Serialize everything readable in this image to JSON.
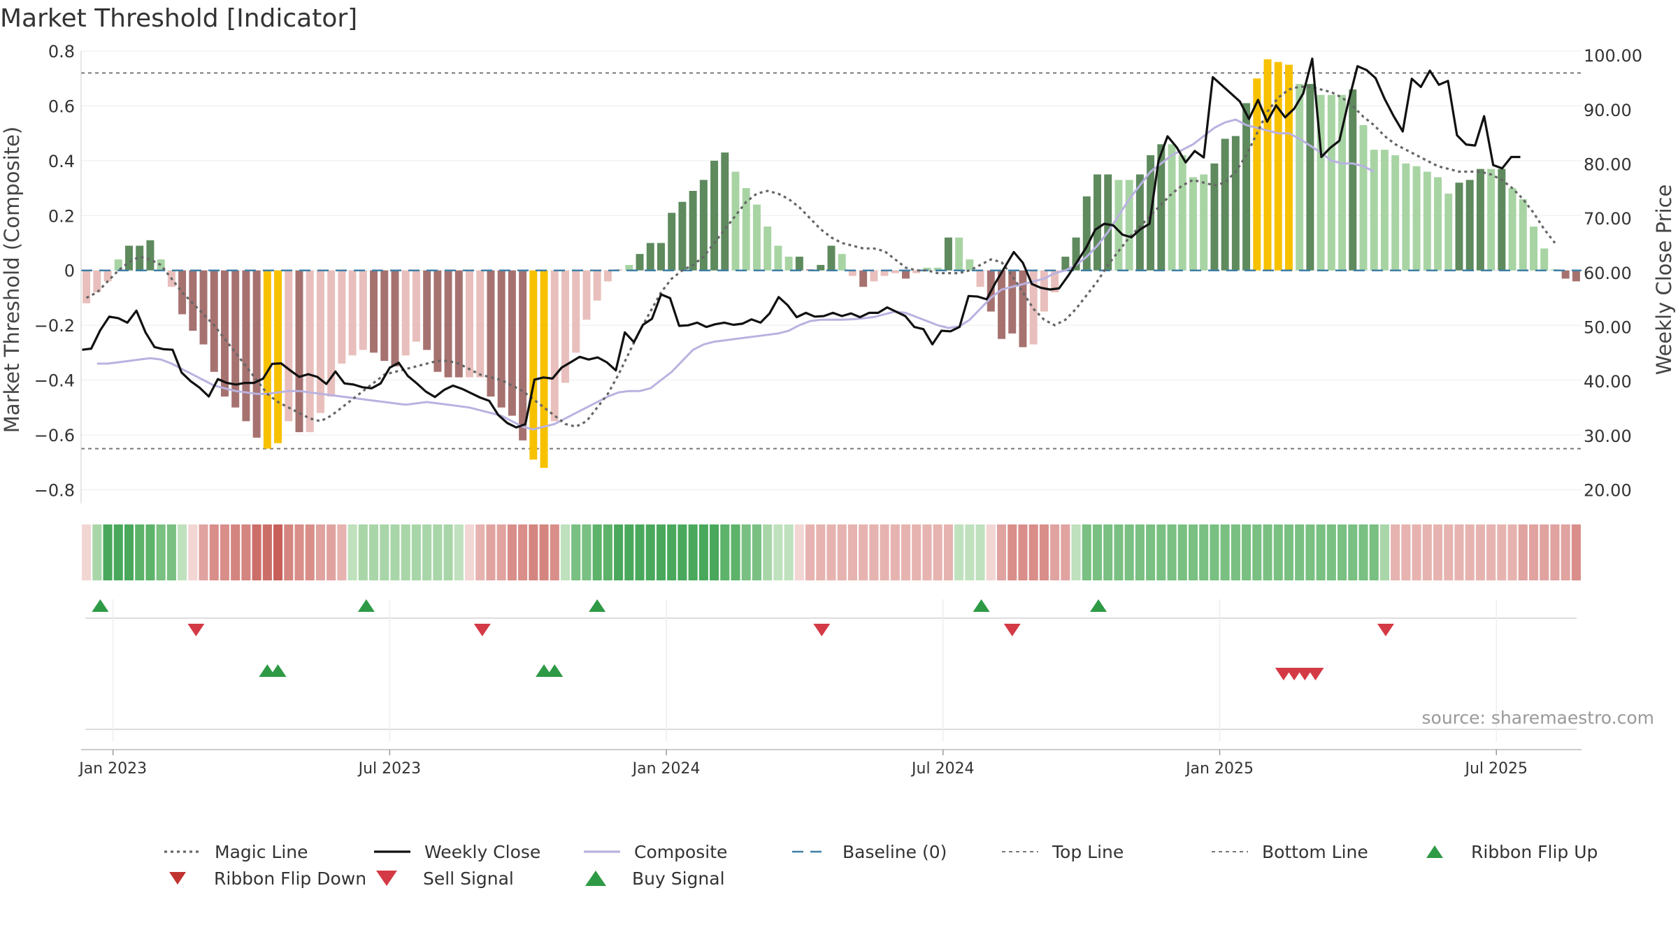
{
  "title": "Market Threshold [Indicator]",
  "source": "source: sharemaestro.com",
  "colors": {
    "dark_green": "#5e8a5e",
    "light_green": "#a8d4a4",
    "dark_red": "#a67270",
    "light_red": "#e8bfbc",
    "yellow": "#f7c100",
    "magic": "#666666",
    "close": "#111111",
    "composite": "#b9b2e0",
    "baseline": "#3f7fa6",
    "threshold": "#777777",
    "buy": "#2e9a46",
    "sell": "#d43a45"
  },
  "chart_data": {
    "type": "bar",
    "title": "Market Threshold [Indicator]",
    "ylabel": "Market Threshold (Composite)",
    "y2label": "Weekly Close Price",
    "ylim": [
      -0.85,
      0.8
    ],
    "y2lim": [
      17.5,
      100.8
    ],
    "yticks": [
      "0.8",
      "0.6",
      "0.4",
      "0.2",
      "0",
      "−0.2",
      "−0.4",
      "−0.6",
      "−0.8"
    ],
    "y2ticks": [
      "100.00",
      "90.00",
      "80.00",
      "70.00",
      "60.00",
      "50.00",
      "40.00",
      "30.00",
      "20.00"
    ],
    "xticks": [
      "Jan 2023",
      "Jul 2023",
      "Jan 2024",
      "Jul 2024",
      "Jan 2025",
      "Jul 2025"
    ],
    "xtick_weeks": [
      2.5,
      28.5,
      54.5,
      80.5,
      106.5,
      132.5
    ],
    "top_line": 0.72,
    "bottom_line": -0.65,
    "baseline": 0,
    "magic_values": [
      -0.1,
      -0.08,
      -0.04,
      0.0,
      0.03,
      0.05,
      0.04,
      0.02,
      -0.03,
      -0.08,
      -0.12,
      -0.16,
      -0.2,
      -0.25,
      -0.3,
      -0.35,
      -0.4,
      -0.45,
      -0.48,
      -0.5,
      -0.52,
      -0.54,
      -0.55,
      -0.53,
      -0.5,
      -0.47,
      -0.44,
      -0.41,
      -0.38,
      -0.37,
      -0.36,
      -0.35,
      -0.34,
      -0.33,
      -0.33,
      -0.34,
      -0.36,
      -0.38,
      -0.39,
      -0.4,
      -0.42,
      -0.44,
      -0.47,
      -0.5,
      -0.53,
      -0.56,
      -0.57,
      -0.55,
      -0.5,
      -0.45,
      -0.38,
      -0.3,
      -0.22,
      -0.15,
      -0.08,
      -0.03,
      -0.0,
      0.02,
      0.05,
      0.1,
      0.15,
      0.2,
      0.25,
      0.28,
      0.29,
      0.28,
      0.26,
      0.23,
      0.19,
      0.15,
      0.12,
      0.1,
      0.09,
      0.08,
      0.08,
      0.07,
      0.04,
      0.01,
      0.0,
      0.0,
      -0.01,
      -0.01,
      -0.01,
      0.0,
      0.02,
      0.04,
      0.03,
      -0.02,
      -0.08,
      -0.14,
      -0.18,
      -0.2,
      -0.18,
      -0.14,
      -0.09,
      -0.04,
      0.02,
      0.07,
      0.12,
      0.16,
      0.2,
      0.24,
      0.28,
      0.31,
      0.33,
      0.32,
      0.31,
      0.32,
      0.36,
      0.42,
      0.5,
      0.58,
      0.63,
      0.66,
      0.67,
      0.67,
      0.66,
      0.65,
      0.63,
      0.6,
      0.56,
      0.53,
      0.49,
      0.46,
      0.44,
      0.42,
      0.4,
      0.38,
      0.37,
      0.36,
      0.36,
      0.36,
      0.35,
      0.33,
      0.3,
      0.26,
      0.21,
      0.15,
      0.1
    ],
    "composite_values": [
      -0.34,
      -0.34,
      -0.335,
      -0.33,
      -0.325,
      -0.32,
      -0.325,
      -0.34,
      -0.36,
      -0.38,
      -0.4,
      -0.42,
      -0.43,
      -0.44,
      -0.445,
      -0.45,
      -0.45,
      -0.445,
      -0.44,
      -0.44,
      -0.445,
      -0.45,
      -0.455,
      -0.46,
      -0.465,
      -0.47,
      -0.475,
      -0.48,
      -0.485,
      -0.49,
      -0.485,
      -0.48,
      -0.485,
      -0.49,
      -0.495,
      -0.5,
      -0.51,
      -0.52,
      -0.53,
      -0.55,
      -0.57,
      -0.58,
      -0.57,
      -0.56,
      -0.54,
      -0.52,
      -0.5,
      -0.48,
      -0.46,
      -0.445,
      -0.44,
      -0.44,
      -0.43,
      -0.4,
      -0.37,
      -0.33,
      -0.29,
      -0.27,
      -0.26,
      -0.255,
      -0.25,
      -0.245,
      -0.24,
      -0.235,
      -0.23,
      -0.22,
      -0.2,
      -0.185,
      -0.18,
      -0.18,
      -0.18,
      -0.178,
      -0.175,
      -0.17,
      -0.16,
      -0.15,
      -0.155,
      -0.17,
      -0.185,
      -0.2,
      -0.21,
      -0.205,
      -0.18,
      -0.14,
      -0.1,
      -0.07,
      -0.06,
      -0.05,
      -0.04,
      -0.03,
      -0.01,
      0.0,
      0.02,
      0.05,
      0.09,
      0.14,
      0.2,
      0.26,
      0.31,
      0.36,
      0.39,
      0.42,
      0.44,
      0.46,
      0.49,
      0.52,
      0.54,
      0.55,
      0.53,
      0.52,
      0.51,
      0.5,
      0.5,
      0.48,
      0.455,
      0.43,
      0.4,
      0.39,
      0.39,
      0.38,
      0.36
    ],
    "composite_start_week": 1,
    "weekly_close": [
      45.8,
      46.0,
      49.4,
      51.9,
      51.6,
      50.8,
      53.0,
      49.0,
      46.3,
      45.9,
      45.8,
      41.6,
      40.0,
      38.8,
      37.2,
      40.4,
      39.7,
      39.4,
      39.7,
      39.7,
      40.5,
      43.2,
      43.3,
      42.0,
      40.8,
      41.3,
      40.8,
      39.5,
      41.8,
      39.6,
      39.4,
      38.9,
      38.7,
      39.6,
      42.5,
      43.4,
      41.0,
      39.6,
      38.1,
      37.1,
      38.4,
      39.2,
      38.6,
      37.8,
      37.0,
      36.4,
      33.8,
      32.3,
      31.5,
      32.1,
      40.3,
      40.7,
      40.5,
      42.5,
      43.5,
      44.5,
      44.0,
      44.4,
      43.5,
      42.0,
      49.0,
      47.2,
      50.4,
      51.5,
      56.0,
      55.3,
      50.2,
      50.3,
      50.8,
      50.0,
      50.5,
      50.8,
      50.4,
      50.6,
      51.4,
      50.8,
      52.5,
      55.5,
      54.0,
      51.8,
      52.6,
      51.9,
      52.0,
      52.6,
      52.0,
      52.5,
      51.8,
      52.6,
      52.6,
      53.6,
      52.8,
      52.0,
      50.0,
      49.6,
      46.8,
      49.3,
      49.2,
      50.0,
      55.7,
      55.6,
      55.1,
      58.2,
      61.0,
      63.8,
      61.8,
      57.9,
      57.2,
      56.9,
      57.1,
      59.4,
      62.0,
      64.6,
      67.9,
      69.0,
      68.7,
      67.0,
      66.5,
      68.0,
      69.0,
      80.6,
      85.1,
      83.1,
      80.3,
      82.4,
      81.2,
      96.0,
      94.5,
      93.0,
      91.5,
      88.3,
      91.8,
      87.8,
      90.8,
      88.6,
      90.2,
      93.0,
      99.4,
      81.3,
      83.0,
      84.3,
      91.5,
      98.0,
      97.3,
      95.8,
      92.0,
      88.8,
      86.0,
      95.7,
      94.2,
      97.2,
      94.6,
      95.3,
      85.3,
      83.6,
      83.4,
      88.8,
      79.8,
      79.2,
      81.3,
      81.3
    ],
    "close_start_week": -0.4,
    "close_step": 0.85,
    "bars": [
      {
        "v": -0.12,
        "t": "lr"
      },
      {
        "v": -0.08,
        "t": "lr"
      },
      {
        "v": -0.04,
        "t": "lr"
      },
      {
        "v": 0.04,
        "t": "lg"
      },
      {
        "v": 0.09,
        "t": "dg"
      },
      {
        "v": 0.09,
        "t": "dg"
      },
      {
        "v": 0.11,
        "t": "dg"
      },
      {
        "v": 0.04,
        "t": "lg"
      },
      {
        "v": -0.06,
        "t": "lr"
      },
      {
        "v": -0.16,
        "t": "dr"
      },
      {
        "v": -0.22,
        "t": "dr"
      },
      {
        "v": -0.27,
        "t": "dr"
      },
      {
        "v": -0.37,
        "t": "dr"
      },
      {
        "v": -0.46,
        "t": "dr"
      },
      {
        "v": -0.5,
        "t": "dr"
      },
      {
        "v": -0.55,
        "t": "dr"
      },
      {
        "v": -0.61,
        "t": "dr"
      },
      {
        "v": -0.65,
        "t": "y"
      },
      {
        "v": -0.63,
        "t": "y"
      },
      {
        "v": -0.55,
        "t": "lr"
      },
      {
        "v": -0.59,
        "t": "dr"
      },
      {
        "v": -0.59,
        "t": "lr"
      },
      {
        "v": -0.52,
        "t": "lr"
      },
      {
        "v": -0.46,
        "t": "lr"
      },
      {
        "v": -0.34,
        "t": "lr"
      },
      {
        "v": -0.31,
        "t": "lr"
      },
      {
        "v": -0.29,
        "t": "lr"
      },
      {
        "v": -0.3,
        "t": "dr"
      },
      {
        "v": -0.33,
        "t": "dr"
      },
      {
        "v": -0.35,
        "t": "dr"
      },
      {
        "v": -0.31,
        "t": "lr"
      },
      {
        "v": -0.26,
        "t": "lr"
      },
      {
        "v": -0.29,
        "t": "dr"
      },
      {
        "v": -0.37,
        "t": "dr"
      },
      {
        "v": -0.39,
        "t": "dr"
      },
      {
        "v": -0.39,
        "t": "dr"
      },
      {
        "v": -0.39,
        "t": "lr"
      },
      {
        "v": -0.39,
        "t": "lr"
      },
      {
        "v": -0.46,
        "t": "dr"
      },
      {
        "v": -0.5,
        "t": "dr"
      },
      {
        "v": -0.53,
        "t": "dr"
      },
      {
        "v": -0.62,
        "t": "dr"
      },
      {
        "v": -0.69,
        "t": "y"
      },
      {
        "v": -0.72,
        "t": "y"
      },
      {
        "v": -0.55,
        "t": "lr"
      },
      {
        "v": -0.41,
        "t": "lr"
      },
      {
        "v": -0.3,
        "t": "lr"
      },
      {
        "v": -0.18,
        "t": "lr"
      },
      {
        "v": -0.11,
        "t": "lr"
      },
      {
        "v": -0.04,
        "t": "lr"
      },
      {
        "v": 0.0,
        "t": "lr"
      },
      {
        "v": 0.02,
        "t": "lg"
      },
      {
        "v": 0.06,
        "t": "dg"
      },
      {
        "v": 0.1,
        "t": "dg"
      },
      {
        "v": 0.1,
        "t": "dg"
      },
      {
        "v": 0.21,
        "t": "dg"
      },
      {
        "v": 0.25,
        "t": "dg"
      },
      {
        "v": 0.29,
        "t": "dg"
      },
      {
        "v": 0.33,
        "t": "dg"
      },
      {
        "v": 0.4,
        "t": "dg"
      },
      {
        "v": 0.43,
        "t": "dg"
      },
      {
        "v": 0.36,
        "t": "lg"
      },
      {
        "v": 0.3,
        "t": "lg"
      },
      {
        "v": 0.24,
        "t": "lg"
      },
      {
        "v": 0.16,
        "t": "lg"
      },
      {
        "v": 0.09,
        "t": "lg"
      },
      {
        "v": 0.05,
        "t": "lg"
      },
      {
        "v": 0.05,
        "t": "dg"
      },
      {
        "v": 0.0,
        "t": "dr"
      },
      {
        "v": 0.02,
        "t": "dg"
      },
      {
        "v": 0.09,
        "t": "dg"
      },
      {
        "v": 0.06,
        "t": "lg"
      },
      {
        "v": -0.02,
        "t": "lr"
      },
      {
        "v": -0.06,
        "t": "dr"
      },
      {
        "v": -0.04,
        "t": "lr"
      },
      {
        "v": -0.02,
        "t": "lr"
      },
      {
        "v": -0.01,
        "t": "lr"
      },
      {
        "v": -0.03,
        "t": "dr"
      },
      {
        "v": -0.01,
        "t": "lr"
      },
      {
        "v": 0.01,
        "t": "lg"
      },
      {
        "v": 0.01,
        "t": "lg"
      },
      {
        "v": 0.12,
        "t": "dg"
      },
      {
        "v": 0.12,
        "t": "lg"
      },
      {
        "v": 0.04,
        "t": "lg"
      },
      {
        "v": -0.06,
        "t": "lr"
      },
      {
        "v": -0.15,
        "t": "dr"
      },
      {
        "v": -0.25,
        "t": "dr"
      },
      {
        "v": -0.23,
        "t": "dr"
      },
      {
        "v": -0.28,
        "t": "dr"
      },
      {
        "v": -0.27,
        "t": "lr"
      },
      {
        "v": -0.15,
        "t": "lr"
      },
      {
        "v": -0.08,
        "t": "lr"
      },
      {
        "v": 0.05,
        "t": "dg"
      },
      {
        "v": 0.12,
        "t": "dg"
      },
      {
        "v": 0.27,
        "t": "dg"
      },
      {
        "v": 0.35,
        "t": "dg"
      },
      {
        "v": 0.35,
        "t": "dg"
      },
      {
        "v": 0.33,
        "t": "lg"
      },
      {
        "v": 0.33,
        "t": "lg"
      },
      {
        "v": 0.35,
        "t": "dg"
      },
      {
        "v": 0.42,
        "t": "dg"
      },
      {
        "v": 0.46,
        "t": "dg"
      },
      {
        "v": 0.46,
        "t": "lg"
      },
      {
        "v": 0.42,
        "t": "lg"
      },
      {
        "v": 0.34,
        "t": "lg"
      },
      {
        "v": 0.35,
        "t": "lg"
      },
      {
        "v": 0.39,
        "t": "dg"
      },
      {
        "v": 0.48,
        "t": "dg"
      },
      {
        "v": 0.49,
        "t": "dg"
      },
      {
        "v": 0.61,
        "t": "dg"
      },
      {
        "v": 0.7,
        "t": "y"
      },
      {
        "v": 0.77,
        "t": "y"
      },
      {
        "v": 0.76,
        "t": "y"
      },
      {
        "v": 0.75,
        "t": "y"
      },
      {
        "v": 0.68,
        "t": "lg"
      },
      {
        "v": 0.68,
        "t": "dg"
      },
      {
        "v": 0.64,
        "t": "lg"
      },
      {
        "v": 0.64,
        "t": "lg"
      },
      {
        "v": 0.64,
        "t": "lg"
      },
      {
        "v": 0.66,
        "t": "dg"
      },
      {
        "v": 0.53,
        "t": "lg"
      },
      {
        "v": 0.44,
        "t": "lg"
      },
      {
        "v": 0.44,
        "t": "lg"
      },
      {
        "v": 0.42,
        "t": "lg"
      },
      {
        "v": 0.39,
        "t": "lg"
      },
      {
        "v": 0.38,
        "t": "lg"
      },
      {
        "v": 0.36,
        "t": "lg"
      },
      {
        "v": 0.34,
        "t": "lg"
      },
      {
        "v": 0.28,
        "t": "lg"
      },
      {
        "v": 0.32,
        "t": "dg"
      },
      {
        "v": 0.33,
        "t": "dg"
      },
      {
        "v": 0.37,
        "t": "dg"
      },
      {
        "v": 0.37,
        "t": "lg"
      },
      {
        "v": 0.37,
        "t": "dg"
      },
      {
        "v": 0.3,
        "t": "lg"
      },
      {
        "v": 0.26,
        "t": "lg"
      },
      {
        "v": 0.16,
        "t": "lg"
      },
      {
        "v": 0.08,
        "t": "lg"
      },
      {
        "v": 0.0,
        "t": "lg"
      },
      {
        "v": -0.03,
        "t": "dr"
      },
      {
        "v": -0.04,
        "t": "dr"
      }
    ],
    "ribbon": [
      "#f2d6d4",
      "#a9d6a8",
      "#49a85c",
      "#49a85c",
      "#49a85c",
      "#5db36a",
      "#5db36a",
      "#79c082",
      "#79c082",
      "#bfe1bd",
      "#f2d6d4",
      "#e0a3a0",
      "#d98e8a",
      "#d98e8a",
      "#d48580",
      "#d48580",
      "#cc6e68",
      "#cc6e68",
      "#c85f5a",
      "#d48580",
      "#d98e8a",
      "#d98e8a",
      "#e0a3a0",
      "#e0a3a0",
      "#e6b3b0",
      "#bfe1bd",
      "#a9d6a8",
      "#a9d6a8",
      "#a9d6a8",
      "#a9d6a8",
      "#a9d6a8",
      "#a9d6a8",
      "#a9d6a8",
      "#a9d6a8",
      "#a9d6a8",
      "#bfe1bd",
      "#f2d6d4",
      "#e6b3b0",
      "#e0a3a0",
      "#e0a3a0",
      "#d98e8a",
      "#d98e8a",
      "#d48580",
      "#d48580",
      "#d98e8a",
      "#bfe1bd",
      "#79c082",
      "#79c082",
      "#5db36a",
      "#5db36a",
      "#49a85c",
      "#49a85c",
      "#49a85c",
      "#49a85c",
      "#49a85c",
      "#49a85c",
      "#49a85c",
      "#49a85c",
      "#49a85c",
      "#49a85c",
      "#5db36a",
      "#5db36a",
      "#79c082",
      "#79c082",
      "#a9d6a8",
      "#bfe1bd",
      "#bfe1bd",
      "#f2d6d4",
      "#e6b3b0",
      "#e6b3b0",
      "#e6b3b0",
      "#e6b3b0",
      "#e6b3b0",
      "#e6b3b0",
      "#e6b3b0",
      "#e6b3b0",
      "#e6b3b0",
      "#e6b3b0",
      "#e6b3b0",
      "#e6b3b0",
      "#e6b3b0",
      "#e6b3b0",
      "#bfe1bd",
      "#bfe1bd",
      "#bfe1bd",
      "#f2d6d4",
      "#e0a3a0",
      "#d98e8a",
      "#d98e8a",
      "#d98e8a",
      "#d98e8a",
      "#e0a3a0",
      "#e0a3a0",
      "#bfe1bd",
      "#79c082",
      "#79c082",
      "#79c082",
      "#79c082",
      "#79c082",
      "#79c082",
      "#79c082",
      "#79c082",
      "#79c082",
      "#79c082",
      "#79c082",
      "#79c082",
      "#79c082",
      "#79c082",
      "#79c082",
      "#79c082",
      "#79c082",
      "#79c082",
      "#79c082",
      "#79c082",
      "#79c082",
      "#79c082",
      "#79c082",
      "#79c082",
      "#79c082",
      "#79c082",
      "#79c082",
      "#79c082",
      "#a9d6a8",
      "#e6b3b0",
      "#e6b3b0",
      "#e6b3b0",
      "#e6b3b0",
      "#e6b3b0",
      "#e6b3b0",
      "#e6b3b0",
      "#e6b3b0",
      "#e6b3b0",
      "#e6b3b0",
      "#e6b3b0",
      "#e6b3b0",
      "#e0a3a0",
      "#e0a3a0",
      "#e0a3a0",
      "#e0a3a0",
      "#e0a3a0",
      "#d98e8a"
    ],
    "ribbon_flip_up_weeks": [
      1.3,
      26.3,
      48.0,
      84.1,
      95.1
    ],
    "ribbon_flip_down_weeks": [
      10.3,
      37.2,
      69.1,
      87.0,
      122.1
    ],
    "buy_signal_weeks": [
      17.0,
      18.0,
      43.0,
      44.0
    ],
    "sell_signal_weeks": [
      112.5,
      113.5,
      114.5,
      115.5
    ]
  },
  "legend": [
    {
      "label": "Magic Line",
      "kind": "magic"
    },
    {
      "label": "Weekly Close",
      "kind": "close"
    },
    {
      "label": "Composite",
      "kind": "composite"
    },
    {
      "label": "Baseline (0)",
      "kind": "baseline"
    },
    {
      "label": "Top Line",
      "kind": "top"
    },
    {
      "label": "Bottom Line",
      "kind": "bottom"
    },
    {
      "label": "Ribbon Flip Up",
      "kind": "flipup"
    },
    {
      "label": "Ribbon Flip Down",
      "kind": "flipdown"
    },
    {
      "label": "Sell Signal",
      "kind": "sell"
    },
    {
      "label": "Buy Signal",
      "kind": "buy"
    }
  ]
}
